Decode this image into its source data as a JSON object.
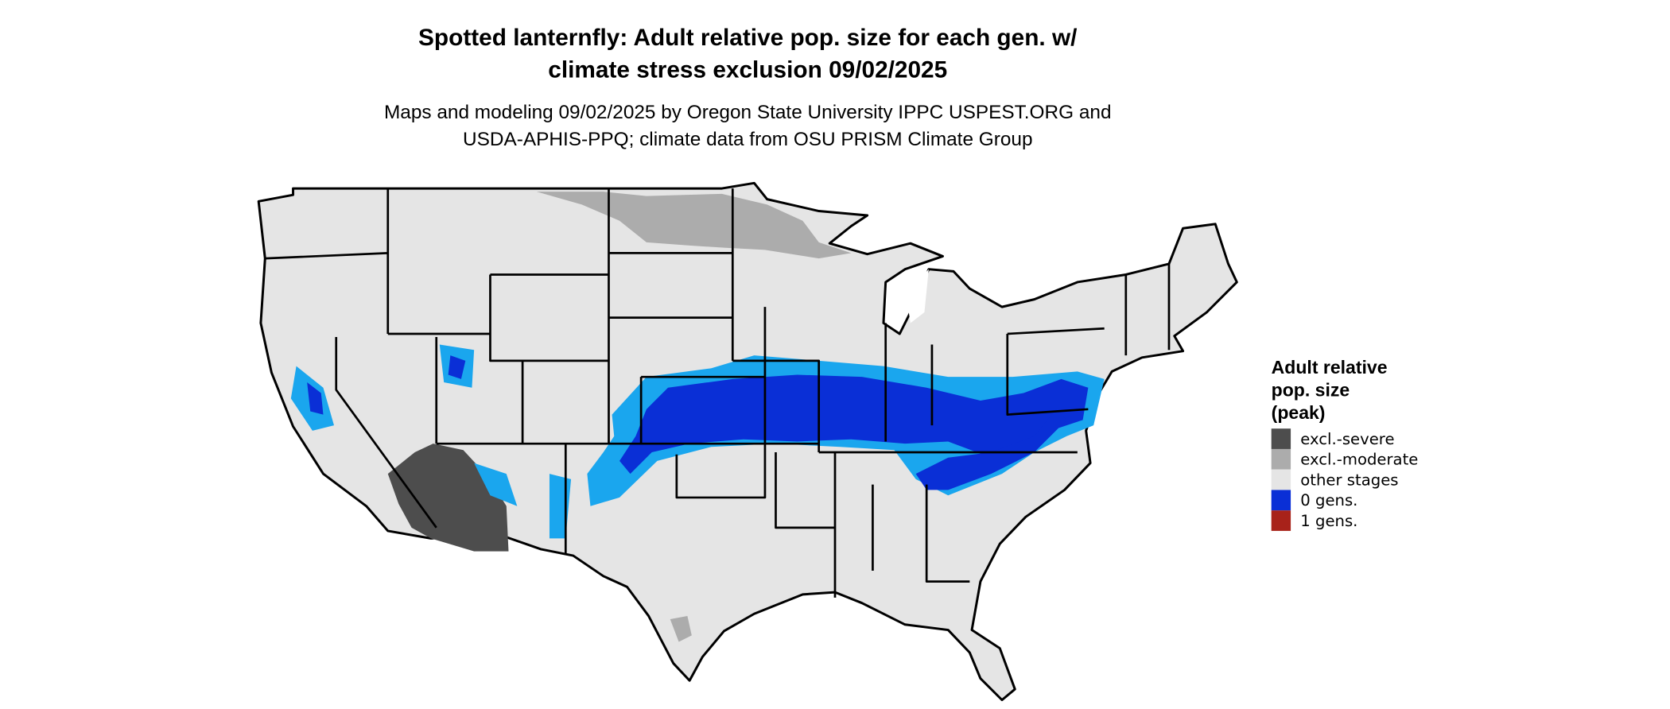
{
  "title_lines": [
    "Spotted lanternfly: Adult relative pop. size for each gen. w/",
    "climate stress exclusion 09/02/2025"
  ],
  "subtitle_lines": [
    "Maps and modeling 09/02/2025 by Oregon State University IPPC USPEST.ORG and",
    "USDA-APHIS-PPQ; climate data from OSU PRISM Climate Group"
  ],
  "legend": {
    "title_lines": [
      "Adult relative",
      "pop. size",
      "(peak)"
    ],
    "items": [
      {
        "label": "excl.-severe",
        "color": "#4d4d4d"
      },
      {
        "label": "excl.-moderate",
        "color": "#acacac"
      },
      {
        "label": "other stages",
        "color": "#e5e5e5"
      },
      {
        "label": "0 gens.",
        "color": "#0a2fd6"
      },
      {
        "label": "1 gens.",
        "color": "#a8221a"
      }
    ]
  }
}
